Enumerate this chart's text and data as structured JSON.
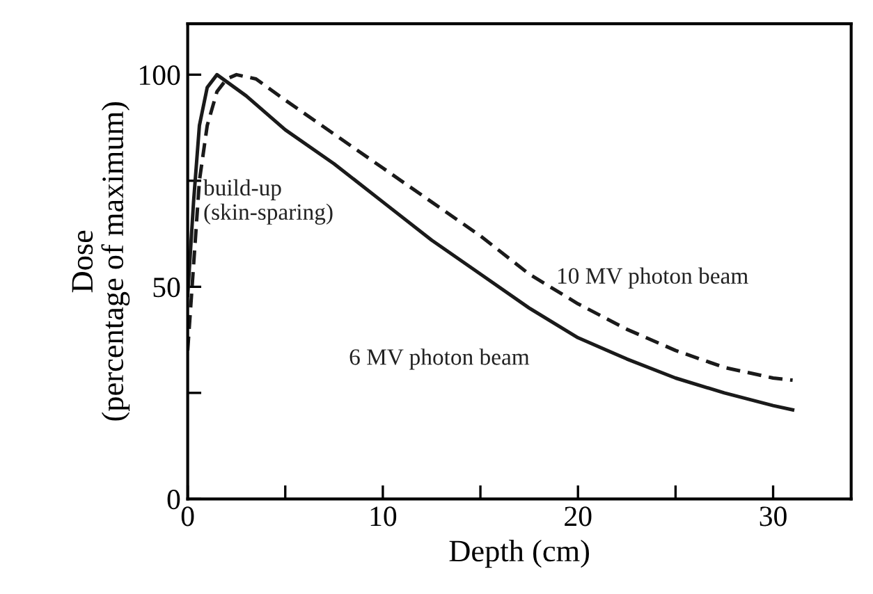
{
  "chart_data": {
    "type": "line",
    "xlabel": "Depth (cm)",
    "ylabel": "Dose\n(percentage of maximum)",
    "xlim": [
      0,
      34
    ],
    "ylim": [
      0,
      112
    ],
    "xticks": [
      0,
      {
        "value": 5,
        "label": null
      },
      10,
      {
        "value": 15,
        "label": null
      },
      20,
      {
        "value": 25,
        "label": null
      },
      30
    ],
    "yticks": [
      0,
      {
        "value": 25,
        "label": null
      },
      50,
      {
        "value": 75,
        "label": null
      },
      100
    ],
    "grid": false,
    "legend": false,
    "marker": "none",
    "annotations": [
      {
        "text": "build-up\n(skin-sparing)",
        "x": 0.8,
        "y": 70
      }
    ],
    "series": [
      {
        "name": "6 MV photon beam",
        "color": "#1a1a1a",
        "line_style": "solid",
        "x": [
          0,
          0.3,
          0.6,
          1.0,
          1.5,
          3,
          5,
          7.5,
          10,
          12.5,
          15,
          17.5,
          20,
          22.5,
          25,
          27.5,
          30,
          31
        ],
        "values": [
          48,
          70,
          88,
          97,
          100,
          95,
          87,
          79,
          70,
          61,
          53,
          45,
          38,
          33,
          28.5,
          25,
          22,
          21
        ]
      },
      {
        "name": "10 MV photon beam",
        "color": "#1a1a1a",
        "line_style": "dashed",
        "x": [
          0,
          0.3,
          0.6,
          1,
          1.5,
          2,
          2.5,
          3.5,
          5,
          7.5,
          10,
          12.5,
          15,
          17.5,
          20,
          22.5,
          25,
          27.5,
          30,
          31
        ],
        "values": [
          35,
          55,
          75,
          88,
          96,
          99,
          100,
          99,
          94,
          86,
          78,
          70,
          62,
          53,
          46,
          40,
          35,
          31,
          28.5,
          28
        ]
      }
    ]
  }
}
